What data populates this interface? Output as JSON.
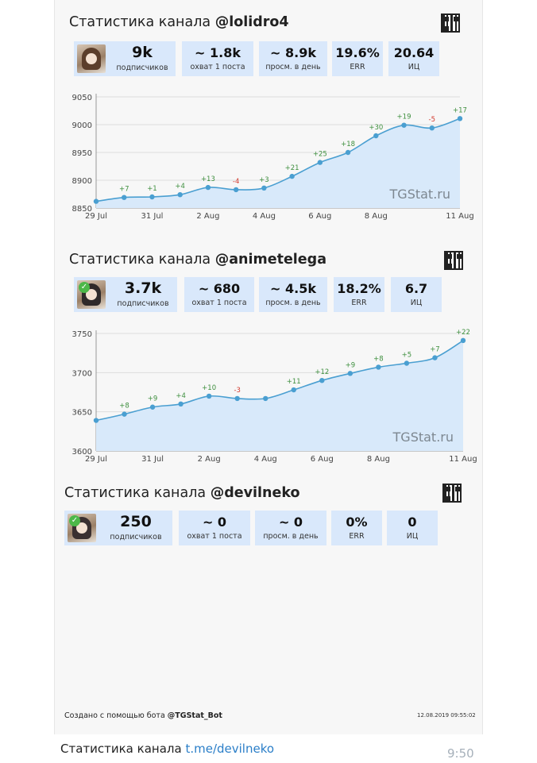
{
  "channels": [
    {
      "title_prefix": "Статистика канала",
      "handle": "@lolidro4",
      "stats": [
        {
          "value": "9k",
          "label": "подписчиков"
        },
        {
          "value": "~ 1.8k",
          "label": "охват 1 поста"
        },
        {
          "value": "~ 8.9k",
          "label": "просм. в день"
        },
        {
          "value": "19.6%",
          "label": "ERR"
        },
        {
          "value": "20.64",
          "label": "ИЦ"
        }
      ],
      "chart": {
        "type": "area",
        "watermark": "TGStat.ru",
        "y_ticks": [
          "9050",
          "9000",
          "8950",
          "8900",
          "8850"
        ],
        "ylim": [
          8850,
          9050
        ],
        "x_ticks": [
          "29 Jul",
          "31 Jul",
          "2 Aug",
          "4 Aug",
          "6 Aug",
          "8 Aug",
          "11 Aug"
        ],
        "x_tick_days": [
          0,
          2,
          4,
          6,
          8,
          10,
          13
        ],
        "values": [
          8862,
          8869,
          8870,
          8874,
          8887,
          8883,
          8886,
          8907,
          8932,
          8950,
          8980,
          8999,
          8994,
          9011
        ],
        "deltas": [
          "",
          "+7",
          "+1",
          "+4",
          "+13",
          "-4",
          "+3",
          "+21",
          "+25",
          "+18",
          "+30",
          "+19",
          "-5",
          "+17"
        ]
      }
    },
    {
      "title_prefix": "Статистика канала",
      "handle": "@animetelega",
      "stats": [
        {
          "value": "3.7k",
          "label": "подписчиков"
        },
        {
          "value": "~ 680",
          "label": "охват 1 поста"
        },
        {
          "value": "~ 4.5k",
          "label": "просм. в день"
        },
        {
          "value": "18.2%",
          "label": "ERR"
        },
        {
          "value": "6.7",
          "label": "ИЦ"
        }
      ],
      "chart": {
        "type": "area",
        "watermark": "TGStat.ru",
        "y_ticks": [
          "3750",
          "3700",
          "3650",
          "3600"
        ],
        "ylim": [
          3600,
          3750
        ],
        "x_ticks": [
          "29 Jul",
          "31 Jul",
          "2 Aug",
          "4 Aug",
          "6 Aug",
          "8 Aug",
          "11 Aug"
        ],
        "x_tick_days": [
          0,
          2,
          4,
          6,
          8,
          10,
          13
        ],
        "values": [
          3639,
          3647,
          3656,
          3660,
          3670,
          3667,
          3667,
          3678,
          3690,
          3699,
          3707,
          3712,
          3719,
          3741
        ],
        "deltas": [
          "",
          "+8",
          "+9",
          "+4",
          "+10",
          "-3",
          "",
          "+11",
          "+12",
          "+9",
          "+8",
          "+5",
          "+7",
          "+22"
        ]
      }
    },
    {
      "title_prefix": "Статистика канала",
      "handle": "@devilneko",
      "stats": [
        {
          "value": "250",
          "label": "подписчиков"
        },
        {
          "value": "~ 0",
          "label": "охват 1 поста"
        },
        {
          "value": "~ 0",
          "label": "просм. в день"
        },
        {
          "value": "0%",
          "label": "ERR"
        },
        {
          "value": "0",
          "label": "ИЦ"
        }
      ]
    }
  ],
  "footer": {
    "made_with": "Создано с помощью бота",
    "bot": "@TGStat_Bot",
    "timestamp": "12.08.2019 09:55:02"
  },
  "message": {
    "text": "Статистика канала",
    "link": "t.me/devilneko",
    "time": "9:50"
  },
  "colors": {
    "line": "#4a9fd1",
    "fill": "#d8e9fa",
    "positive": "#3e8f3e",
    "negative": "#d23a2e",
    "stat_bg": "#d9e8fb",
    "link": "#2a7ec8"
  }
}
